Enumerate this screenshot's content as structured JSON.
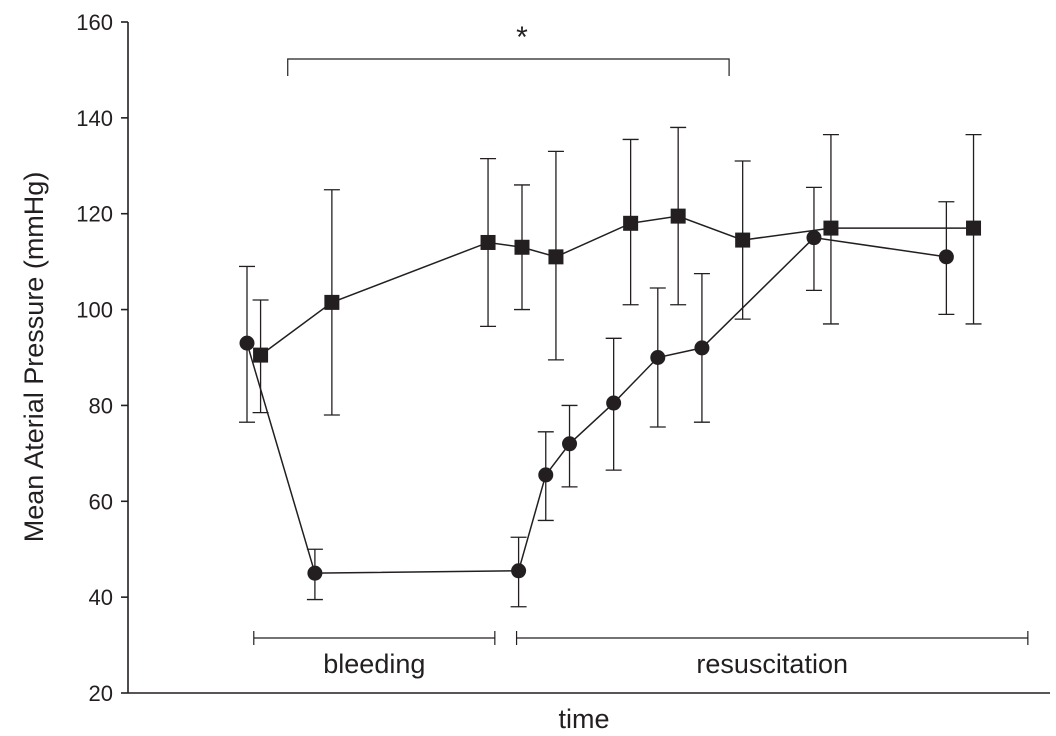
{
  "chart_data": {
    "type": "line",
    "title": "",
    "xlabel": "time",
    "ylabel": "Mean Aterial Pressure (mmHg)",
    "ylim": [
      20,
      160
    ],
    "yticks": [
      20,
      40,
      60,
      80,
      100,
      120,
      140,
      160
    ],
    "grid": false,
    "legend": "none",
    "series": [
      {
        "marker": "circle",
        "points": [
          {
            "t": 0,
            "y": 93,
            "err_low": 76.5,
            "err_high": 109
          },
          {
            "t": 1,
            "y": 45,
            "err_low": 39.5,
            "err_high": 50
          },
          {
            "t": 4,
            "y": 45.5,
            "err_low": 38,
            "err_high": 52.5
          },
          {
            "t": 4.4,
            "y": 65.5,
            "err_low": 56,
            "err_high": 74.5
          },
          {
            "t": 4.75,
            "y": 72,
            "err_low": 63,
            "err_high": 80
          },
          {
            "t": 5.4,
            "y": 80.5,
            "err_low": 66.5,
            "err_high": 94
          },
          {
            "t": 6.05,
            "y": 90,
            "err_low": 75.5,
            "err_high": 104.5
          },
          {
            "t": 6.7,
            "y": 92,
            "err_low": 76.5,
            "err_high": 107.5
          },
          {
            "t": 8.35,
            "y": 115,
            "err_low": 104,
            "err_high": 125.5
          },
          {
            "t": 10.3,
            "y": 111,
            "err_low": 99,
            "err_high": 122.5
          }
        ]
      },
      {
        "marker": "square",
        "points": [
          {
            "t": 0.2,
            "y": 90.5,
            "err_low": 78.5,
            "err_high": 102
          },
          {
            "t": 1.25,
            "y": 101.5,
            "err_low": 78,
            "err_high": 125
          },
          {
            "t": 3.55,
            "y": 114,
            "err_low": 96.5,
            "err_high": 131.5
          },
          {
            "t": 4.05,
            "y": 113,
            "err_low": 100,
            "err_high": 126
          },
          {
            "t": 4.55,
            "y": 111,
            "err_low": 89.5,
            "err_high": 133
          },
          {
            "t": 5.65,
            "y": 118,
            "err_low": 101,
            "err_high": 135.5
          },
          {
            "t": 6.35,
            "y": 119.5,
            "err_low": 101,
            "err_high": 138
          },
          {
            "t": 7.3,
            "y": 114.5,
            "err_low": 98,
            "err_high": 131
          },
          {
            "t": 8.6,
            "y": 117,
            "err_low": 97,
            "err_high": 136.5
          },
          {
            "t": 10.7,
            "y": 117,
            "err_low": 97,
            "err_high": 136.5
          }
        ]
      }
    ],
    "annotations": {
      "significance_label": "*",
      "significance_span_t": [
        0.6,
        7.1
      ],
      "phases": [
        {
          "label": "bleeding",
          "t_start": 0.1,
          "t_end": 3.65
        },
        {
          "label": "resuscitation",
          "t_start": 3.97,
          "t_end": 11.5
        }
      ]
    }
  }
}
